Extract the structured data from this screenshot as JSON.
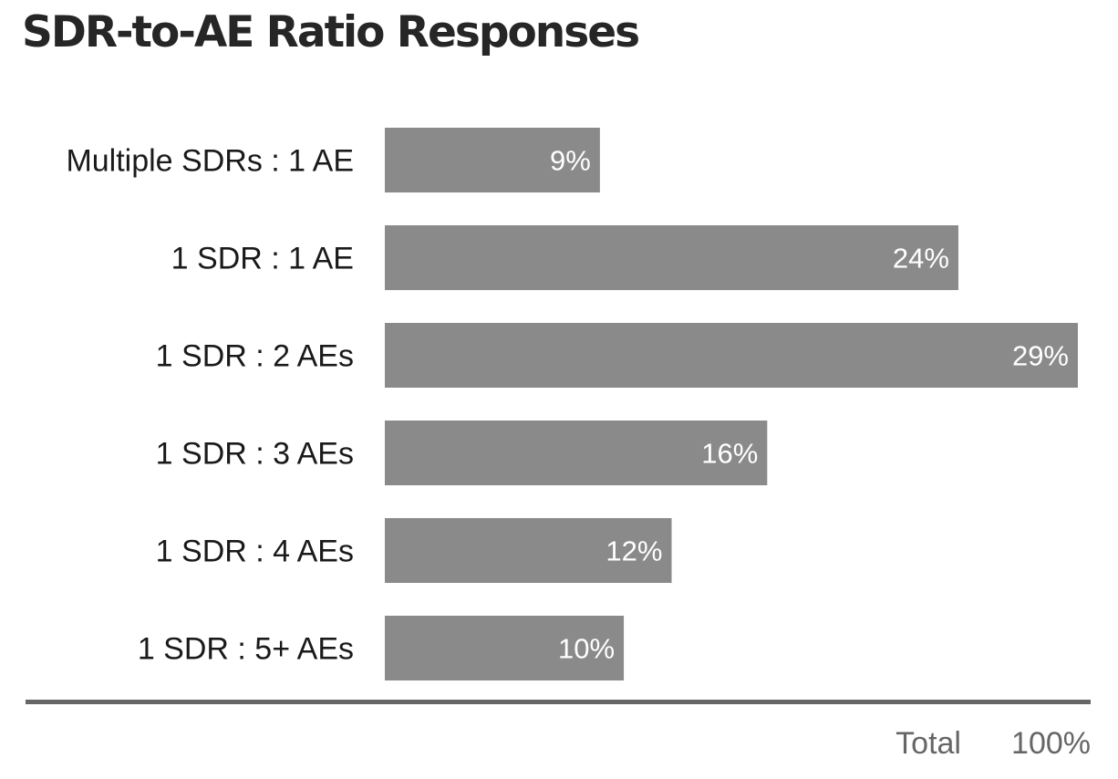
{
  "chart_data": {
    "type": "bar",
    "orientation": "horizontal",
    "title": "SDR-to-AE Ratio Responses",
    "categories": [
      "Multiple SDRs : 1 AE",
      "1 SDR : 1 AE",
      "1 SDR : 2 AEs",
      "1 SDR : 3 AEs",
      "1 SDR : 4 AEs",
      "1 SDR : 5+ AEs"
    ],
    "values": [
      9,
      24,
      29,
      16,
      12,
      10
    ],
    "data_labels": [
      "9%",
      "24%",
      "29%",
      "16%",
      "12%",
      "10%"
    ],
    "xlim": [
      0,
      29
    ],
    "grid": false,
    "bar_color": "#8a8a8a",
    "total": {
      "label": "Total",
      "value": "100%"
    }
  }
}
